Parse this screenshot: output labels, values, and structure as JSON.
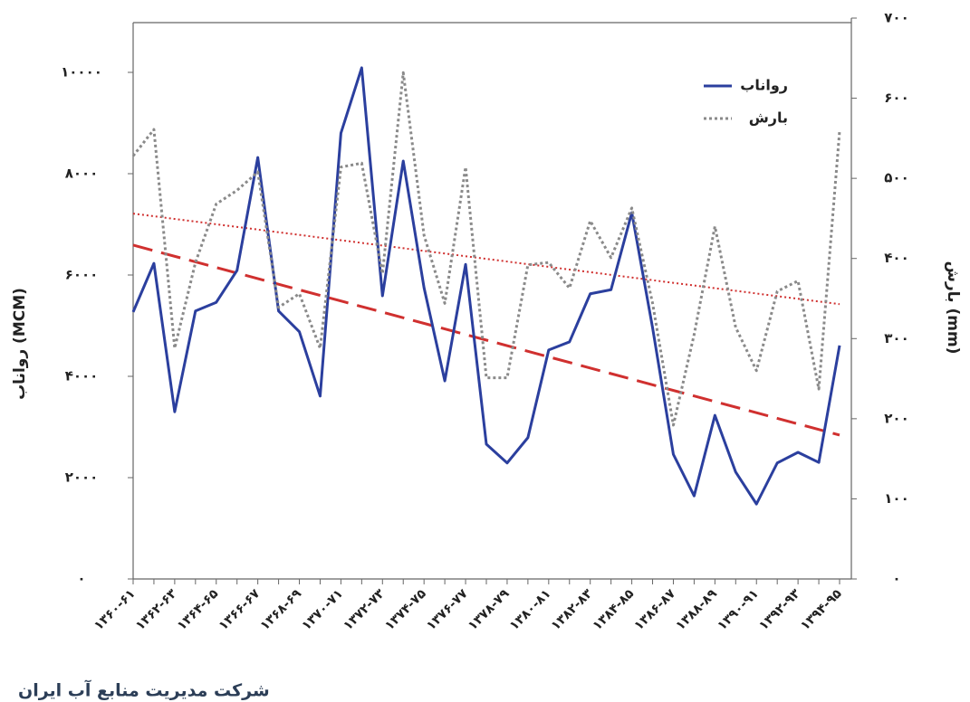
{
  "chart_data": {
    "type": "line",
    "y_label": "رواناب (MCM)",
    "y2_label": "بارش (mm)",
    "source": "شرکت مدیریت منابع آب ایران",
    "categories": [
      "۱۳۶۰-۶۱",
      null,
      "۱۳۶۲-۶۳",
      null,
      "۱۳۶۴-۶۵",
      null,
      "۱۳۶۶-۶۷",
      null,
      "۱۳۶۸-۶۹",
      null,
      "۱۳۷۰-۷۱",
      null,
      "۱۳۷۲-۷۳",
      null,
      "۱۳۷۴-۷۵",
      null,
      "۱۳۷۶-۷۷",
      null,
      "۱۳۷۸-۷۹",
      null,
      "۱۳۸۰-۸۱",
      null,
      "۱۳۸۲-۸۳",
      null,
      "۱۳۸۴-۸۵",
      null,
      "۱۳۸۶-۸۷",
      null,
      "۱۳۸۸-۸۹",
      null,
      "۱۳۹۰-۹۱",
      null,
      "۱۳۹۲-۹۳",
      null,
      "۱۳۹۴-۹۵"
    ],
    "series": [
      {
        "name": "رواناب",
        "color": "#2b3f9e",
        "style": "solid",
        "axis": "y",
        "values": [
          5270,
          6230,
          3300,
          5290,
          5460,
          6090,
          8320,
          5290,
          4880,
          3610,
          8800,
          10090,
          5590,
          8250,
          5750,
          3910,
          6210,
          2660,
          2290,
          2790,
          4520,
          4680,
          5630,
          5710,
          7230,
          4960,
          2460,
          1640,
          3230,
          2110,
          1480,
          2290,
          2500,
          2300,
          4610
        ]
      },
      {
        "name": "بارش",
        "color": "#8a8a8a",
        "style": "dotted",
        "axis": "y2",
        "values": [
          528,
          561,
          288,
          395,
          468,
          485,
          508,
          339,
          356,
          288,
          514,
          519,
          381,
          632,
          429,
          344,
          514,
          251,
          251,
          392,
          395,
          363,
          447,
          401,
          463,
          344,
          192,
          305,
          440,
          314,
          260,
          359,
          372,
          237,
          559
        ]
      }
    ],
    "trend_lines": [
      {
        "axis": "y",
        "color": "#d0302f",
        "style": "dashed",
        "values": [
          6590,
          2840
        ]
      },
      {
        "axis": "y2",
        "color": "#d0302f",
        "style": "dotted",
        "values": [
          456,
          343
        ]
      }
    ],
    "ylim": [
      0,
      10000
    ],
    "yticks": [
      {
        "value": 0,
        "label": "۰"
      },
      {
        "value": 2000,
        "label": "۲۰۰۰"
      },
      {
        "value": 4000,
        "label": "۴۰۰۰"
      },
      {
        "value": 6000,
        "label": "۶۰۰۰"
      },
      {
        "value": 8000,
        "label": "۸۰۰۰"
      },
      {
        "value": 10000,
        "label": "۱۰۰۰۰"
      }
    ],
    "y2lim": [
      0,
      700
    ],
    "y2ticks": [
      {
        "value": 0,
        "label": "۰"
      },
      {
        "value": 100,
        "label": "۱۰۰"
      },
      {
        "value": 200,
        "label": "۲۰۰"
      },
      {
        "value": 300,
        "label": "۳۰۰"
      },
      {
        "value": 400,
        "label": "۴۰۰"
      },
      {
        "value": 500,
        "label": "۵۰۰"
      },
      {
        "value": 600,
        "label": "۶۰۰"
      },
      {
        "value": 700,
        "label": "۷۰۰"
      }
    ],
    "legend": "top-right"
  }
}
